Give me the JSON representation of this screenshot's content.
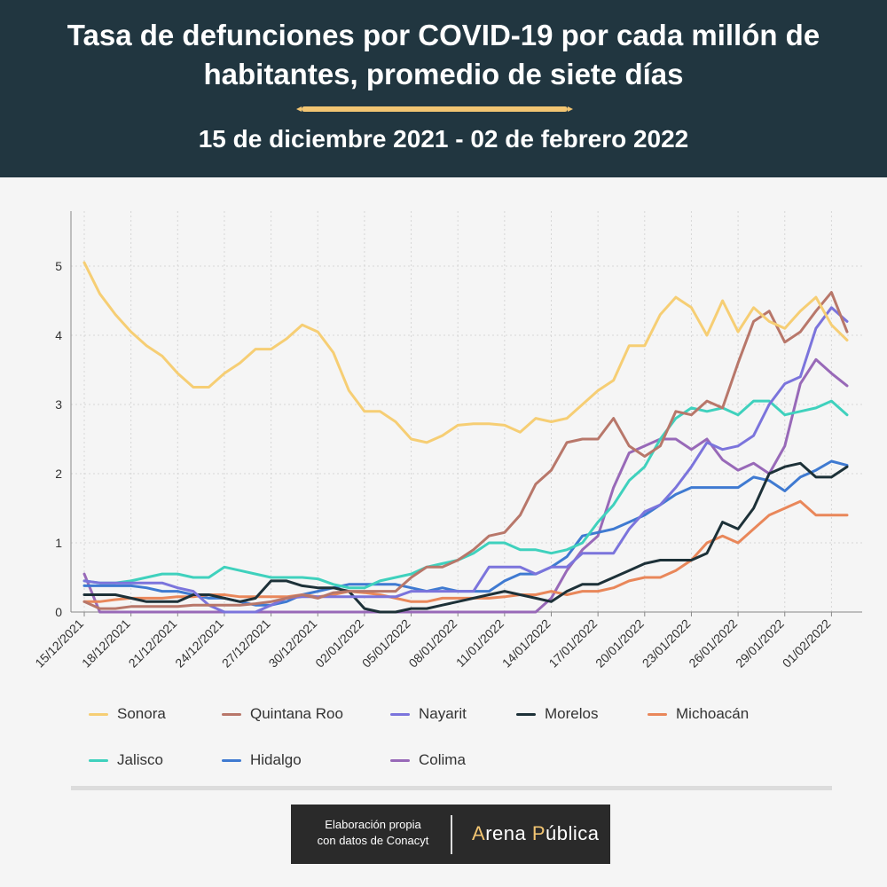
{
  "header": {
    "title": "Tasa de defunciones por COVID-19 por cada millón de habitantes, promedio de siete días",
    "subtitle": "15 de diciembre 2021 - 02 de febrero 2022"
  },
  "footer": {
    "credit_line1": "Elaboración propia",
    "credit_line2": "con datos de Conacyt",
    "logo_a": "A",
    "logo_rena": "rena ",
    "logo_p": "P",
    "logo_ublica": "ública"
  },
  "colors": {
    "header_bg": "#213640",
    "accent": "#f2c572"
  },
  "chart_data": {
    "type": "line",
    "title": "",
    "xlabel": "",
    "ylabel": "",
    "ylim": [
      0,
      5.8
    ],
    "yticks": [
      0,
      1,
      2,
      3,
      4,
      5
    ],
    "grid": true,
    "legend_position": "bottom",
    "start_date": "2021-12-15",
    "x_tick_labels": [
      "15/12/2021",
      "18/12/2021",
      "21/12/2021",
      "24/12/2021",
      "27/12/2021",
      "30/12/2021",
      "02/01/2022",
      "05/01/2022",
      "08/01/2022",
      "11/01/2022",
      "14/01/2022",
      "17/01/2022",
      "20/01/2022",
      "23/01/2022",
      "26/01/2022",
      "29/01/2022",
      "01/02/2022"
    ],
    "x": [
      "2021-12-15",
      "2021-12-16",
      "2021-12-17",
      "2021-12-18",
      "2021-12-19",
      "2021-12-20",
      "2021-12-21",
      "2021-12-22",
      "2021-12-23",
      "2021-12-24",
      "2021-12-25",
      "2021-12-26",
      "2021-12-27",
      "2021-12-28",
      "2021-12-29",
      "2021-12-30",
      "2021-12-31",
      "2022-01-01",
      "2022-01-02",
      "2022-01-03",
      "2022-01-04",
      "2022-01-05",
      "2022-01-06",
      "2022-01-07",
      "2022-01-08",
      "2022-01-09",
      "2022-01-10",
      "2022-01-11",
      "2022-01-12",
      "2022-01-13",
      "2022-01-14",
      "2022-01-15",
      "2022-01-16",
      "2022-01-17",
      "2022-01-18",
      "2022-01-19",
      "2022-01-20",
      "2022-01-21",
      "2022-01-22",
      "2022-01-23",
      "2022-01-24",
      "2022-01-25",
      "2022-01-26",
      "2022-01-27",
      "2022-01-28",
      "2022-01-29",
      "2022-01-30",
      "2022-01-31",
      "2022-02-01",
      "2022-02-02"
    ],
    "series": [
      {
        "name": "Sonora",
        "color": "#f6ce74",
        "values": [
          5.05,
          4.6,
          4.3,
          4.05,
          3.85,
          3.7,
          3.45,
          3.25,
          3.25,
          3.45,
          3.6,
          3.8,
          3.8,
          3.95,
          4.15,
          4.05,
          3.75,
          3.2,
          2.9,
          2.9,
          2.75,
          2.5,
          2.45,
          2.55,
          2.7,
          2.72,
          2.72,
          2.7,
          2.6,
          2.8,
          2.75,
          2.8,
          3.0,
          3.2,
          3.35,
          3.85,
          3.85,
          4.3,
          4.55,
          4.4,
          4.0,
          4.5,
          4.05,
          4.4,
          4.2,
          4.1,
          4.35,
          4.55,
          4.15,
          3.93
        ]
      },
      {
        "name": "Quintana Roo",
        "color": "#b8776a",
        "values": [
          0.15,
          0.05,
          0.05,
          0.08,
          0.08,
          0.08,
          0.08,
          0.1,
          0.1,
          0.1,
          0.1,
          0.12,
          0.15,
          0.2,
          0.25,
          0.2,
          0.28,
          0.3,
          0.3,
          0.3,
          0.3,
          0.5,
          0.65,
          0.65,
          0.75,
          0.9,
          1.1,
          1.15,
          1.4,
          1.85,
          2.05,
          2.45,
          2.5,
          2.5,
          2.8,
          2.4,
          2.25,
          2.4,
          2.9,
          2.85,
          3.05,
          2.95,
          3.6,
          4.2,
          4.35,
          3.9,
          4.05,
          4.35,
          4.62,
          4.05
        ]
      },
      {
        "name": "Nayarit",
        "color": "#7b74dc",
        "values": [
          0.45,
          0.42,
          0.42,
          0.42,
          0.42,
          0.42,
          0.35,
          0.3,
          0.1,
          0.0,
          0.0,
          0.0,
          0.1,
          0.2,
          0.22,
          0.22,
          0.22,
          0.22,
          0.22,
          0.22,
          0.22,
          0.3,
          0.3,
          0.3,
          0.3,
          0.3,
          0.65,
          0.65,
          0.65,
          0.55,
          0.65,
          0.65,
          0.85,
          0.85,
          0.85,
          1.2,
          1.45,
          1.55,
          1.8,
          2.1,
          2.45,
          2.35,
          2.4,
          2.55,
          3.0,
          3.3,
          3.4,
          4.1,
          4.4,
          4.2
        ]
      },
      {
        "name": "Morelos",
        "color": "#1d3138",
        "values": [
          0.25,
          0.25,
          0.25,
          0.2,
          0.15,
          0.15,
          0.15,
          0.25,
          0.25,
          0.2,
          0.15,
          0.2,
          0.45,
          0.45,
          0.38,
          0.35,
          0.35,
          0.3,
          0.05,
          0.0,
          0.0,
          0.05,
          0.05,
          0.1,
          0.15,
          0.2,
          0.25,
          0.3,
          0.25,
          0.2,
          0.15,
          0.3,
          0.4,
          0.4,
          0.5,
          0.6,
          0.7,
          0.75,
          0.75,
          0.75,
          0.85,
          1.3,
          1.2,
          1.5,
          2.0,
          2.1,
          2.15,
          1.95,
          1.95,
          2.1
        ]
      },
      {
        "name": "Michoacán",
        "color": "#e9875a",
        "values": [
          0.15,
          0.15,
          0.18,
          0.2,
          0.2,
          0.2,
          0.22,
          0.22,
          0.25,
          0.25,
          0.22,
          0.22,
          0.22,
          0.22,
          0.25,
          0.22,
          0.25,
          0.3,
          0.28,
          0.25,
          0.2,
          0.15,
          0.15,
          0.2,
          0.2,
          0.2,
          0.2,
          0.22,
          0.25,
          0.25,
          0.3,
          0.25,
          0.3,
          0.3,
          0.35,
          0.45,
          0.5,
          0.5,
          0.6,
          0.75,
          1.0,
          1.1,
          1.0,
          1.2,
          1.4,
          1.5,
          1.6,
          1.4,
          1.4,
          1.4
        ]
      },
      {
        "name": "Jalisco",
        "color": "#3fd1bd",
        "values": [
          0.45,
          0.42,
          0.42,
          0.45,
          0.5,
          0.55,
          0.55,
          0.5,
          0.5,
          0.65,
          0.6,
          0.55,
          0.5,
          0.5,
          0.5,
          0.48,
          0.4,
          0.35,
          0.35,
          0.45,
          0.5,
          0.55,
          0.65,
          0.7,
          0.75,
          0.85,
          1.0,
          1.0,
          0.9,
          0.9,
          0.85,
          0.9,
          1.0,
          1.3,
          1.55,
          1.9,
          2.1,
          2.5,
          2.8,
          2.95,
          2.9,
          2.95,
          2.85,
          3.05,
          3.05,
          2.85,
          2.9,
          2.95,
          3.05,
          2.85
        ]
      },
      {
        "name": "Hidalgo",
        "color": "#3f7ad1",
        "values": [
          0.38,
          0.38,
          0.38,
          0.38,
          0.35,
          0.3,
          0.3,
          0.25,
          0.2,
          0.2,
          0.15,
          0.1,
          0.1,
          0.15,
          0.25,
          0.3,
          0.35,
          0.4,
          0.4,
          0.4,
          0.4,
          0.35,
          0.3,
          0.35,
          0.3,
          0.3,
          0.3,
          0.45,
          0.55,
          0.55,
          0.65,
          0.8,
          1.1,
          1.15,
          1.2,
          1.3,
          1.4,
          1.55,
          1.7,
          1.8,
          1.8,
          1.8,
          1.8,
          1.95,
          1.9,
          1.75,
          1.95,
          2.05,
          2.18,
          2.12
        ]
      },
      {
        "name": "Colima",
        "color": "#9869b8",
        "values": [
          0.55,
          0.0,
          0.0,
          0.0,
          0.0,
          0.0,
          0.0,
          0.0,
          0.0,
          0.0,
          0.0,
          0.0,
          0.0,
          0.0,
          0.0,
          0.0,
          0.0,
          0.0,
          0.0,
          0.0,
          0.0,
          0.0,
          0.0,
          0.0,
          0.0,
          0.0,
          0.0,
          0.0,
          0.0,
          0.0,
          0.2,
          0.6,
          0.9,
          1.1,
          1.8,
          2.3,
          2.4,
          2.5,
          2.5,
          2.35,
          2.5,
          2.2,
          2.05,
          2.15,
          2.0,
          2.4,
          3.3,
          3.65,
          3.45,
          3.27
        ]
      }
    ]
  }
}
